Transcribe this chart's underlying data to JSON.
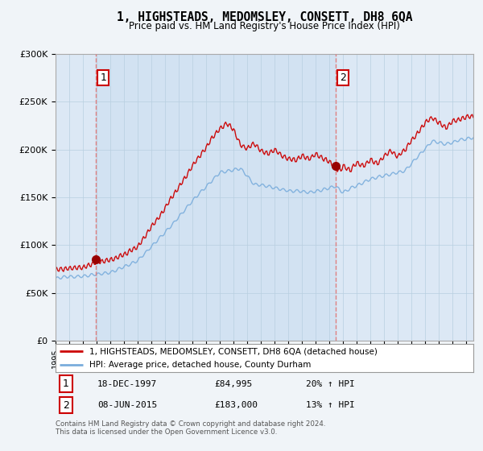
{
  "title": "1, HIGHSTEADS, MEDOMSLEY, CONSETT, DH8 6QA",
  "subtitle": "Price paid vs. HM Land Registry's House Price Index (HPI)",
  "ylim": [
    0,
    300000
  ],
  "xlim_start": 1995.0,
  "xlim_end": 2025.5,
  "sale1_year": 1997.96,
  "sale1_price": 84995,
  "sale1_label": "1",
  "sale1_date": "18-DEC-1997",
  "sale1_hpi": "20% ↑ HPI",
  "sale2_year": 2015.44,
  "sale2_price": 183000,
  "sale2_label": "2",
  "sale2_date": "08-JUN-2015",
  "sale2_hpi": "13% ↑ HPI",
  "legend_line1": "1, HIGHSTEADS, MEDOMSLEY, CONSETT, DH8 6QA (detached house)",
  "legend_line2": "HPI: Average price, detached house, County Durham",
  "footer": "Contains HM Land Registry data © Crown copyright and database right 2024.\nThis data is licensed under the Open Government Licence v3.0.",
  "line_color_red": "#cc0000",
  "line_color_blue": "#7aaddc",
  "dot_color_red": "#990000",
  "background_color": "#f0f4f8",
  "plot_bg_color": "#dce8f5",
  "grid_color": "#b8cfe0",
  "dashed_color": "#e08080",
  "shade_color": "#ccdff0",
  "label_box_edge": "#cc0000"
}
